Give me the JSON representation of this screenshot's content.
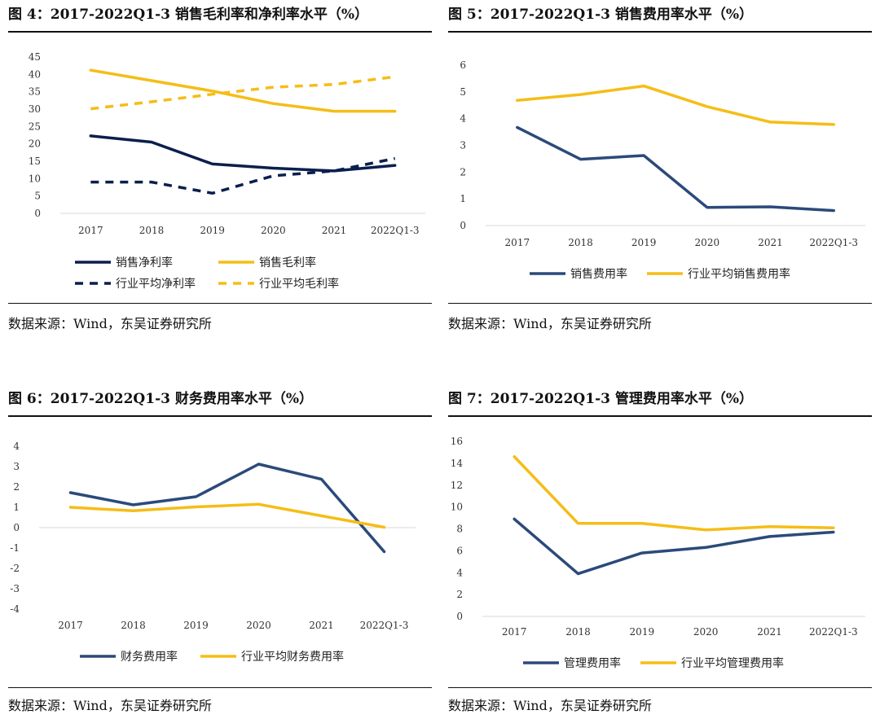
{
  "source_text": "数据来源：Wind，东吴证券研究所",
  "chart_data": [
    {
      "type": "line",
      "title": "图 4：2017-2022Q1-3 销售毛利率和净利率水平（%）",
      "categories": [
        "2017",
        "2018",
        "2019",
        "2020",
        "2021",
        "2022Q1-3"
      ],
      "ylim": [
        0,
        45
      ],
      "yticks": [
        "0",
        "5",
        "10",
        "15",
        "20",
        "25",
        "30",
        "35",
        "40",
        "45"
      ],
      "grid": false,
      "legend": "bottom",
      "series": [
        {
          "name": "销售净利率",
          "values": [
            22.3,
            20.5,
            14.2,
            13.0,
            12.2,
            13.8
          ],
          "color": "#0b1f4d",
          "dashed": false
        },
        {
          "name": "销售毛利率",
          "values": [
            41.2,
            38.2,
            35.2,
            31.6,
            29.4,
            29.4
          ],
          "color": "#f5bd17",
          "dashed": false
        },
        {
          "name": "行业平均净利率",
          "values": [
            9.0,
            9.0,
            5.8,
            10.8,
            12.2,
            15.8
          ],
          "color": "#0b1f4d",
          "dashed": true
        },
        {
          "name": "行业平均毛利率",
          "values": [
            30.1,
            32.1,
            34.3,
            36.3,
            37.1,
            39.3
          ],
          "color": "#f5bd17",
          "dashed": true
        }
      ]
    },
    {
      "type": "line",
      "title": "图 5：2017-2022Q1-3 销售费用率水平（%）",
      "categories": [
        "2017",
        "2018",
        "2019",
        "2020",
        "2021",
        "2022Q1-3"
      ],
      "ylim": [
        0,
        6
      ],
      "yticks": [
        "0",
        "1",
        "2",
        "3",
        "4",
        "5",
        "6"
      ],
      "grid": false,
      "legend": "bottom",
      "series": [
        {
          "name": "销售费用率",
          "values": [
            3.67,
            2.48,
            2.62,
            0.68,
            0.7,
            0.56
          ],
          "color": "#2b4a7a",
          "dashed": false
        },
        {
          "name": "行业平均销售费用率",
          "values": [
            4.68,
            4.9,
            5.22,
            4.45,
            3.87,
            3.78
          ],
          "color": "#f5bd17",
          "dashed": false
        }
      ]
    },
    {
      "type": "line",
      "title": "图 6：2017-2022Q1-3 财务费用率水平（%）",
      "categories": [
        "2017",
        "2018",
        "2019",
        "2020",
        "2021",
        "2022Q1-3"
      ],
      "ylim": [
        -4,
        4
      ],
      "yticks": [
        "-4",
        "-3",
        "-2",
        "-1",
        "0",
        "1",
        "2",
        "3",
        "4"
      ],
      "grid": false,
      "legend": "bottom",
      "series": [
        {
          "name": "财务费用率",
          "values": [
            1.72,
            1.12,
            1.52,
            3.12,
            2.38,
            -1.18
          ],
          "color": "#2b4a7a",
          "dashed": false
        },
        {
          "name": "行业平均财务费用率",
          "values": [
            1.0,
            0.83,
            1.02,
            1.15,
            0.58,
            0.02
          ],
          "color": "#f5bd17",
          "dashed": false
        }
      ]
    },
    {
      "type": "line",
      "title": "图 7：2017-2022Q1-3 管理费用率水平（%）",
      "categories": [
        "2017",
        "2018",
        "2019",
        "2020",
        "2021",
        "2022Q1-3"
      ],
      "ylim": [
        0,
        16
      ],
      "yticks": [
        "0",
        "2",
        "4",
        "6",
        "8",
        "10",
        "12",
        "14",
        "16"
      ],
      "grid": false,
      "legend": "bottom",
      "series": [
        {
          "name": "管理费用率",
          "values": [
            8.9,
            3.9,
            5.8,
            6.3,
            7.3,
            7.7
          ],
          "color": "#2b4a7a",
          "dashed": false
        },
        {
          "name": "行业平均管理费用率",
          "values": [
            14.6,
            8.5,
            8.5,
            7.9,
            8.2,
            8.1
          ],
          "color": "#f5bd17",
          "dashed": false
        }
      ]
    }
  ]
}
